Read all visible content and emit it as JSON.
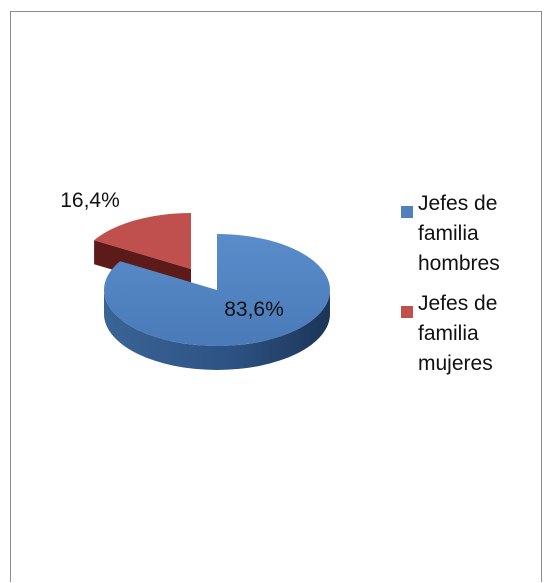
{
  "chart_data": {
    "type": "pie",
    "style": "3d-exploded",
    "categories": [
      "Jefes de familia hombres",
      "Jefes de familia mujeres"
    ],
    "values": [
      83.6,
      16.4
    ],
    "data_labels": [
      "83,6%",
      "16,4%"
    ],
    "colors": [
      "#4f81bd",
      "#c0504d"
    ],
    "legend_position": "right",
    "legend": [
      {
        "label": "Jefes de\nfamilia\nhombres",
        "color": "#4f81bd"
      },
      {
        "label": "Jefes de\nfamilia\nmujeres",
        "color": "#c0504d"
      }
    ]
  }
}
